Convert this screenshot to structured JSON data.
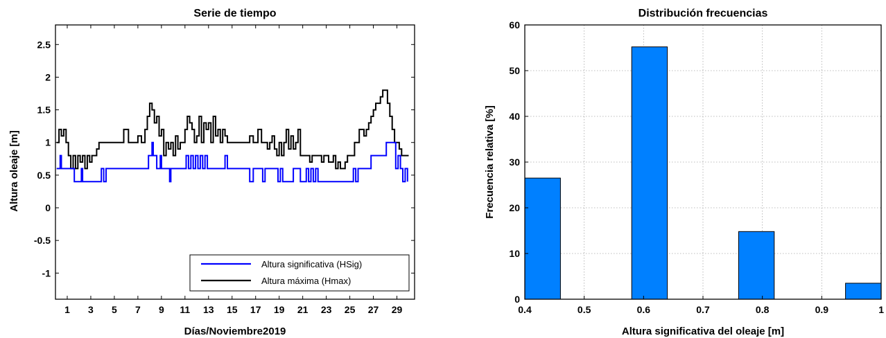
{
  "chart_data": [
    {
      "type": "line",
      "title": "Serie de tiempo",
      "xlabel": "Días/Noviembre2019",
      "ylabel": "Altura oleaje [m]",
      "xlim": [
        0,
        30.5
      ],
      "ylim": [
        -1.4,
        2.8
      ],
      "xticks": [
        1,
        3,
        5,
        7,
        9,
        11,
        13,
        15,
        17,
        19,
        21,
        23,
        25,
        27,
        29
      ],
      "yticks": [
        -1,
        -0.5,
        0,
        0.5,
        1,
        1.5,
        2,
        2.5
      ],
      "ytick_labels": [
        "-1",
        "-0.5",
        "0",
        "0.5",
        "1",
        "1.5",
        "2",
        "2.5"
      ],
      "grid": false,
      "legend_position": "bottom-right",
      "series": [
        {
          "name": "Altura significativa (HSig)",
          "color": "#0000ff",
          "x": [
            0.1,
            0.4,
            0.5,
            1.5,
            1.6,
            2.2,
            2.3,
            3.8,
            3.9,
            4.1,
            4.2,
            4.3,
            7.8,
            7.9,
            8.0,
            8.2,
            8.3,
            8.5,
            8.6,
            8.9,
            9.0,
            9.5,
            9.7,
            9.8,
            10.0,
            10.2,
            10.4,
            10.6,
            10.8,
            11.1,
            11.3,
            11.5,
            11.7,
            11.9,
            12.1,
            12.3,
            12.5,
            12.7,
            12.9,
            13.1,
            13.3,
            13.6,
            13.8,
            14.0,
            14.4,
            14.6,
            14.8,
            15.0,
            15.5,
            16.0,
            16.3,
            16.5,
            16.8,
            17.3,
            17.6,
            17.8,
            18.1,
            18.4,
            18.9,
            19.1,
            19.3,
            19.6,
            19.9,
            20.2,
            20.5,
            20.8,
            21.1,
            21.3,
            21.5,
            21.7,
            21.9,
            22.1,
            22.3,
            22.5,
            22.8,
            23.1,
            23.5,
            24.0,
            24.5,
            25.0,
            25.3,
            25.5,
            25.7,
            25.9,
            26.2,
            26.5,
            26.8,
            27.1,
            27.5,
            27.8,
            28.1,
            28.4,
            28.6,
            28.9,
            29.1,
            29.3,
            29.5,
            29.7,
            29.9
          ],
          "y": [
            0.6,
            0.8,
            0.6,
            0.6,
            0.4,
            0.6,
            0.4,
            0.4,
            0.6,
            0.4,
            0.4,
            0.6,
            0.6,
            0.8,
            0.8,
            1.0,
            0.8,
            0.8,
            0.6,
            0.8,
            0.6,
            0.6,
            0.4,
            0.6,
            0.6,
            0.6,
            0.6,
            0.6,
            0.6,
            0.8,
            0.6,
            0.8,
            0.6,
            0.8,
            0.6,
            0.8,
            0.6,
            0.8,
            0.6,
            0.6,
            0.6,
            0.6,
            0.6,
            0.6,
            0.8,
            0.6,
            0.6,
            0.6,
            0.6,
            0.6,
            0.6,
            0.4,
            0.6,
            0.6,
            0.4,
            0.6,
            0.6,
            0.6,
            0.4,
            0.6,
            0.4,
            0.4,
            0.4,
            0.6,
            0.6,
            0.4,
            0.4,
            0.6,
            0.4,
            0.6,
            0.4,
            0.6,
            0.4,
            0.4,
            0.4,
            0.4,
            0.4,
            0.4,
            0.4,
            0.4,
            0.6,
            0.4,
            0.6,
            0.6,
            0.6,
            0.6,
            0.8,
            0.8,
            0.8,
            0.8,
            1.0,
            1.0,
            1.0,
            0.6,
            0.8,
            0.6,
            0.4,
            0.6,
            0.4
          ]
        },
        {
          "name": "Altura máxima (Hmax)",
          "color": "#000000",
          "x": [
            0.1,
            0.3,
            0.5,
            0.7,
            0.9,
            1.1,
            1.3,
            1.5,
            1.7,
            1.9,
            2.1,
            2.3,
            2.5,
            2.7,
            2.9,
            3.1,
            3.3,
            3.5,
            3.7,
            3.9,
            4.1,
            4.5,
            5.0,
            5.5,
            5.8,
            6.2,
            6.5,
            6.8,
            7.0,
            7.3,
            7.6,
            7.8,
            8.0,
            8.2,
            8.4,
            8.6,
            8.8,
            9.0,
            9.2,
            9.4,
            9.6,
            9.8,
            10.0,
            10.2,
            10.4,
            10.6,
            10.8,
            11.0,
            11.2,
            11.4,
            11.6,
            11.8,
            12.0,
            12.2,
            12.4,
            12.6,
            12.8,
            13.0,
            13.2,
            13.4,
            13.6,
            13.8,
            14.0,
            14.2,
            14.4,
            14.6,
            14.8,
            15.0,
            15.2,
            15.5,
            15.8,
            16.0,
            16.2,
            16.5,
            16.8,
            17.0,
            17.2,
            17.5,
            17.8,
            18.0,
            18.2,
            18.4,
            18.6,
            18.8,
            19.0,
            19.2,
            19.4,
            19.6,
            19.8,
            20.0,
            20.2,
            20.4,
            20.6,
            20.8,
            21.0,
            21.2,
            21.4,
            21.6,
            21.8,
            22.0,
            22.2,
            22.4,
            22.6,
            22.8,
            23.0,
            23.2,
            23.4,
            23.6,
            23.8,
            24.0,
            24.2,
            24.4,
            24.6,
            24.8,
            25.0,
            25.2,
            25.4,
            25.6,
            25.8,
            26.0,
            26.2,
            26.4,
            26.6,
            26.8,
            27.0,
            27.2,
            27.4,
            27.6,
            27.8,
            28.0,
            28.2,
            28.4,
            28.6,
            28.8,
            29.0,
            29.2,
            29.4,
            29.6,
            29.8,
            30.0
          ],
          "y": [
            1.0,
            1.2,
            1.1,
            1.2,
            1.0,
            0.8,
            0.6,
            0.8,
            0.6,
            0.8,
            0.7,
            0.8,
            0.6,
            0.8,
            0.7,
            0.8,
            0.8,
            0.9,
            1.0,
            1.0,
            1.0,
            1.0,
            1.0,
            1.0,
            1.2,
            1.0,
            1.0,
            1.0,
            1.1,
            1.0,
            1.2,
            1.4,
            1.6,
            1.5,
            1.3,
            1.4,
            1.1,
            1.2,
            0.8,
            1.0,
            0.9,
            1.0,
            0.8,
            1.1,
            0.9,
            1.0,
            1.0,
            1.2,
            1.4,
            1.3,
            1.2,
            1.0,
            1.1,
            1.4,
            1.0,
            1.3,
            1.2,
            1.3,
            1.0,
            1.4,
            1.1,
            1.2,
            1.0,
            1.2,
            1.1,
            1.0,
            1.0,
            1.0,
            1.0,
            1.0,
            1.0,
            1.0,
            1.0,
            1.1,
            1.0,
            1.0,
            1.2,
            1.0,
            1.0,
            0.9,
            1.0,
            1.1,
            0.9,
            0.8,
            1.0,
            0.8,
            1.0,
            1.2,
            0.9,
            1.1,
            0.9,
            1.0,
            1.2,
            0.8,
            0.8,
            0.8,
            0.8,
            0.7,
            0.8,
            0.8,
            0.8,
            0.8,
            0.7,
            0.8,
            0.8,
            0.7,
            0.7,
            0.8,
            0.6,
            0.7,
            0.6,
            0.6,
            0.7,
            0.8,
            0.8,
            0.8,
            1.0,
            1.0,
            1.2,
            1.2,
            1.1,
            1.2,
            1.3,
            1.4,
            1.5,
            1.6,
            1.6,
            1.7,
            1.8,
            1.8,
            1.6,
            1.4,
            1.2,
            1.0,
            1.0,
            0.9,
            0.8,
            0.8,
            0.8,
            0.8
          ]
        }
      ]
    },
    {
      "type": "bar",
      "title": "Distribución frecuencias",
      "xlabel": "Altura significativa del oleaje [m]",
      "ylabel": "Frecuencia relativa [%]",
      "xlim": [
        0.4,
        1.0
      ],
      "ylim": [
        0,
        60
      ],
      "xticks": [
        0.4,
        0.5,
        0.6,
        0.7,
        0.8,
        0.9,
        1.0
      ],
      "xtick_labels": [
        "0.4",
        "0.5",
        "0.6",
        "0.7",
        "0.8",
        "0.9",
        "1"
      ],
      "yticks": [
        0,
        10,
        20,
        30,
        40,
        50,
        60
      ],
      "ytick_labels": [
        "0",
        "10",
        "20",
        "30",
        "40",
        "50",
        "60"
      ],
      "grid": true,
      "bar_color": "#0080ff",
      "bar_width": 0.06,
      "bars": [
        {
          "x": 0.43,
          "value": 26.5
        },
        {
          "x": 0.61,
          "value": 55.2
        },
        {
          "x": 0.79,
          "value": 14.8
        },
        {
          "x": 0.97,
          "value": 3.5
        }
      ]
    }
  ]
}
